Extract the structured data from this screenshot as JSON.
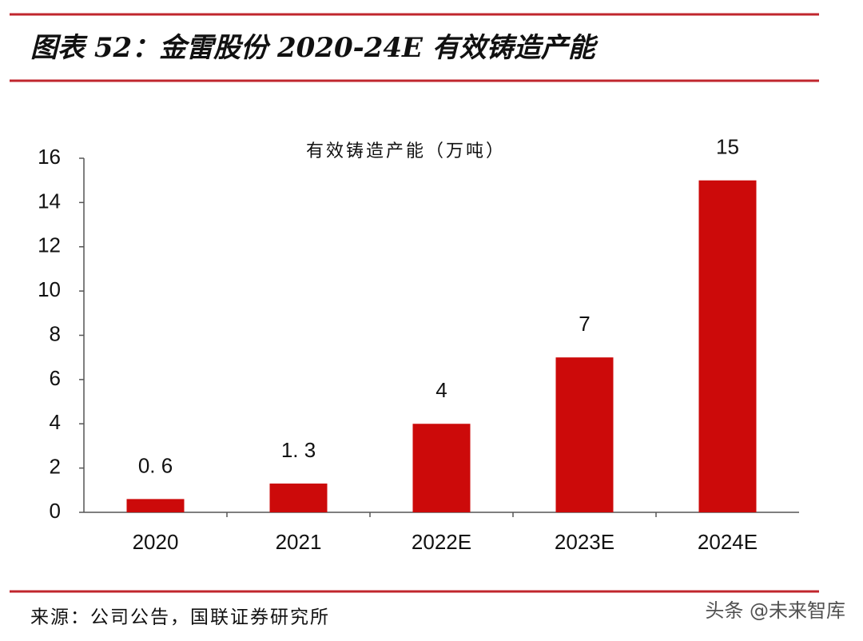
{
  "chart_data": {
    "type": "bar",
    "title": "图表 52：金雷股份 2020-24E 有效铸造产能",
    "categories": [
      "2020",
      "2021",
      "2022E",
      "2023E",
      "2024E"
    ],
    "series": [
      {
        "name": "有效铸造产能（万吨）",
        "color": "#cc0a0a",
        "values": [
          0.6,
          1.3,
          4,
          7,
          15
        ],
        "value_labels": [
          "0. 6",
          "1. 3",
          "4",
          "7",
          "15"
        ]
      }
    ],
    "ylim": [
      0,
      16
    ],
    "yticks": [
      0,
      2,
      4,
      6,
      8,
      10,
      12,
      14,
      16
    ],
    "grid": false,
    "source": "来源：公司公告，国联证券研究所",
    "watermark": "头条 @未来智库"
  }
}
